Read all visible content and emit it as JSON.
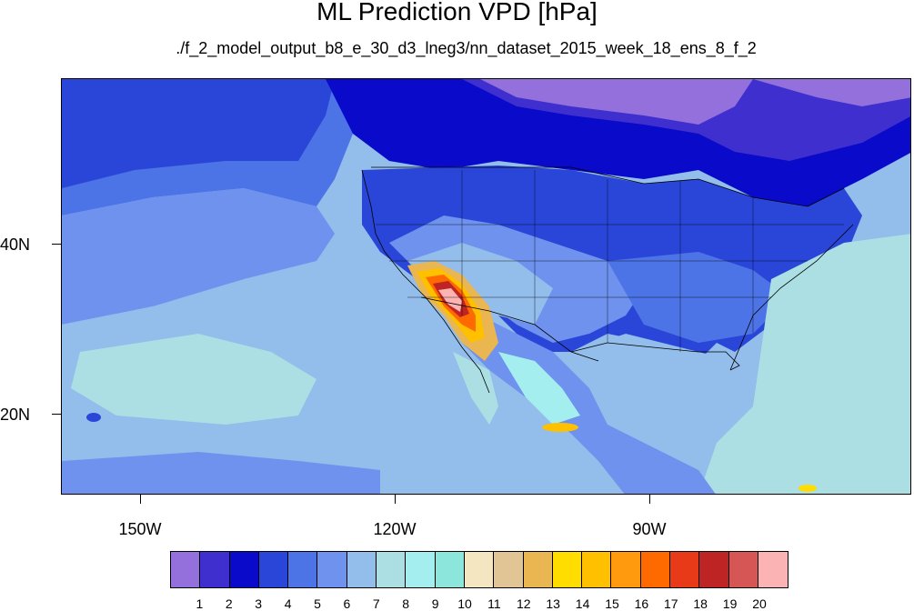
{
  "title": "ML Prediction VPD [hPa]",
  "subtitle": "./f_2_model_output_b8_e_30_d3_lneg3/nn_dataset_2015_week_18_ens_8_f_2",
  "map": {
    "lat_labels": [
      "40N",
      "20N"
    ],
    "lon_labels": [
      "150W",
      "120W",
      "90W"
    ]
  },
  "colorbar": {
    "labels": [
      "1",
      "2",
      "3",
      "4",
      "5",
      "6",
      "7",
      "8",
      "9",
      "10",
      "11",
      "12",
      "13",
      "14",
      "15",
      "16",
      "17",
      "18",
      "19",
      "20"
    ],
    "colors": [
      "#9370db",
      "#3f2fcf",
      "#0a0acb",
      "#2a46d9",
      "#4d74e6",
      "#6e92ee",
      "#93bdea",
      "#acdfe4",
      "#a5eef0",
      "#8ce6dc",
      "#f4e6c0",
      "#e2c594",
      "#e9b651",
      "#ffdd00",
      "#ffc000",
      "#ff9a0e",
      "#ff6a00",
      "#e83a18",
      "#be2424",
      "#d65656",
      "#fcb3b3"
    ]
  }
}
